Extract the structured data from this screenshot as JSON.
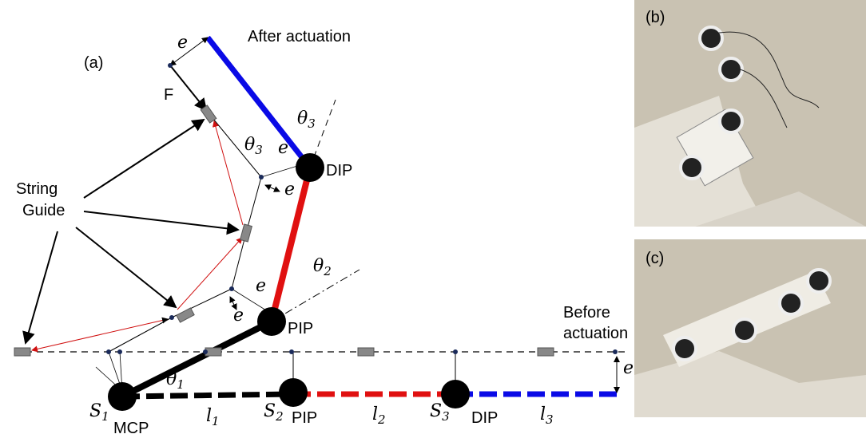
{
  "panel_a": {
    "label": "(a)",
    "after_actuation": "After actuation",
    "before_actuation": [
      "Before",
      "actuation"
    ],
    "string_guide": [
      "String",
      "Guide"
    ],
    "force": "F",
    "offsets": [
      "e",
      "e",
      "e",
      "e",
      "e",
      "e"
    ],
    "joints_actuated": [
      "DIP",
      "PIP"
    ],
    "joints_rest": [
      "MCP",
      "PIP",
      "DIP"
    ],
    "angles": [
      {
        "symbol": "θ",
        "sub": "3"
      },
      {
        "symbol": "θ",
        "sub": "3"
      },
      {
        "symbol": "θ",
        "sub": "2"
      },
      {
        "symbol": "θ",
        "sub": "1"
      }
    ],
    "points": [
      {
        "symbol": "S",
        "sub": "1"
      },
      {
        "symbol": "S",
        "sub": "2"
      },
      {
        "symbol": "S",
        "sub": "3"
      }
    ],
    "lengths": [
      {
        "symbol": "l",
        "sub": "1"
      },
      {
        "symbol": "l",
        "sub": "2"
      },
      {
        "symbol": "l",
        "sub": "3"
      }
    ]
  },
  "panel_b": {
    "label": "(b)"
  },
  "panel_c": {
    "label": "(c)"
  }
}
